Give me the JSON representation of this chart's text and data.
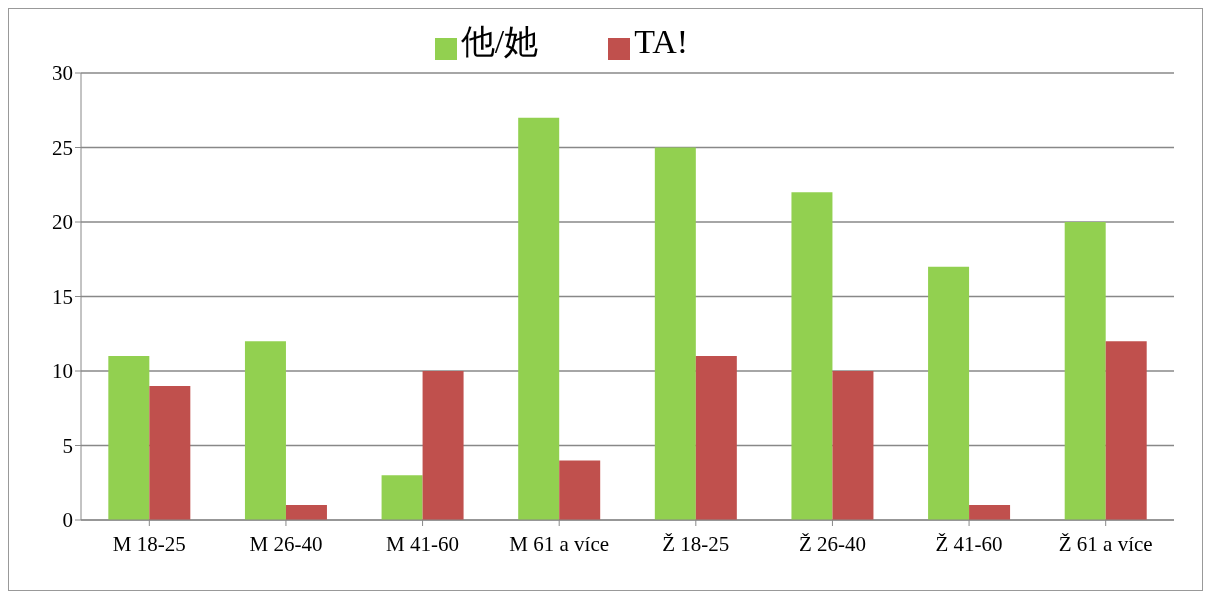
{
  "chart_data": {
    "type": "bar",
    "categories": [
      "M 18-25",
      "M 26-40",
      "M 41-60",
      "M 61 a více",
      "Ž 18-25",
      "Ž 26-40",
      "Ž 41-60",
      "Ž 61 a více"
    ],
    "series": [
      {
        "name": "他/她",
        "color": "#92d050",
        "values": [
          11,
          12,
          3,
          27,
          25,
          22,
          17,
          20
        ]
      },
      {
        "name": "TA!",
        "color": "#c0504d",
        "values": [
          9,
          1,
          10,
          4,
          11,
          10,
          1,
          12
        ]
      }
    ],
    "ylim": [
      0,
      30
    ],
    "yticks": [
      0,
      5,
      10,
      15,
      20,
      25,
      30
    ],
    "grid": "y",
    "legend": "top"
  }
}
